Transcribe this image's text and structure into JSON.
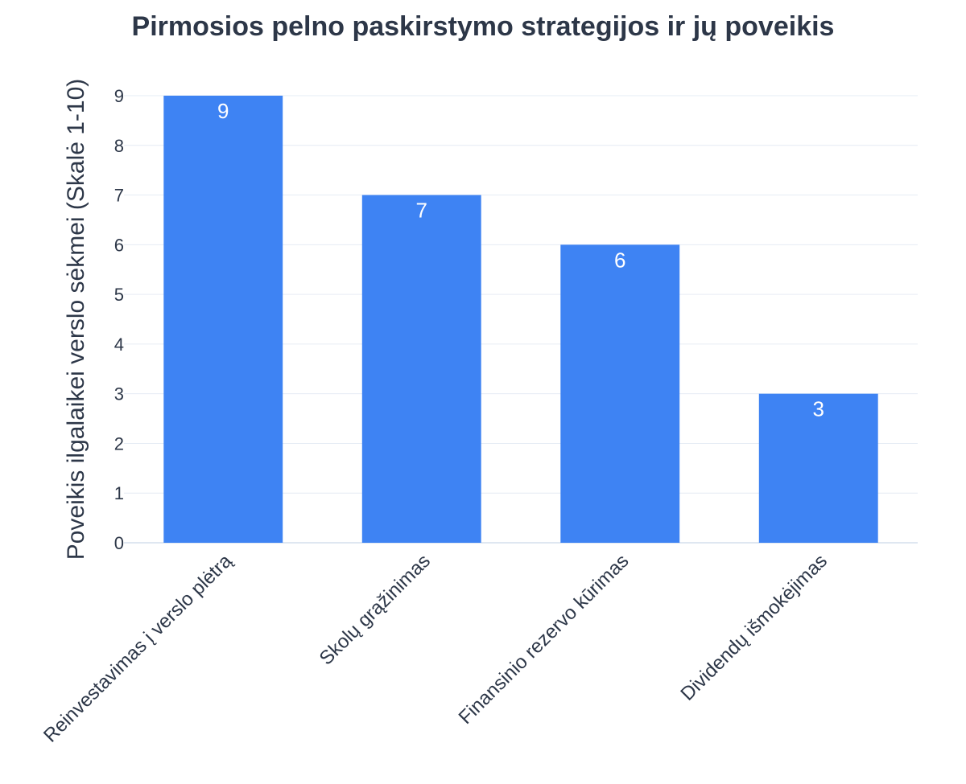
{
  "chart_data": {
    "type": "bar",
    "title": "Pirmosios pelno paskirstymo strategijos ir jų poveikis",
    "xlabel": "",
    "ylabel": "Poveikis ilgalaikei verslo sėkmei (Skalė 1-10)",
    "categories": [
      "Reinvestavimas į verslo plėtrą",
      "Skolų grąžinimas",
      "Finansinio rezervo kūrimas",
      "Dividendų išmokėjimas"
    ],
    "values": [
      9,
      7,
      6,
      3
    ],
    "data_labels": [
      "9",
      "7",
      "6",
      "3"
    ],
    "ylim": [
      0,
      9
    ],
    "yticks": [
      "0",
      "1",
      "2",
      "3",
      "4",
      "5",
      "6",
      "7",
      "8",
      "9"
    ],
    "grid": true,
    "legend": "none",
    "bar_color": "#3e83f3"
  }
}
